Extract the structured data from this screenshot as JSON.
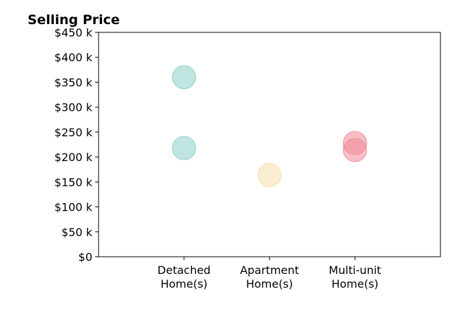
{
  "chart_data": {
    "type": "scatter",
    "title": "Selling Price",
    "xlabel": "",
    "ylabel": "",
    "categories": [
      {
        "line1": "Detached",
        "line2": "Home(s)"
      },
      {
        "line1": "Apartment",
        "line2": "Home(s)"
      },
      {
        "line1": "Multi-unit",
        "line2": "Home(s)"
      }
    ],
    "y_ticks": [
      {
        "value": 0,
        "label": "$0"
      },
      {
        "value": 50,
        "label": "$50 k"
      },
      {
        "value": 100,
        "label": "$100 k"
      },
      {
        "value": 150,
        "label": "$150 k"
      },
      {
        "value": 200,
        "label": "$200 k"
      },
      {
        "value": 250,
        "label": "$250 k"
      },
      {
        "value": 300,
        "label": "$300 k"
      },
      {
        "value": 350,
        "label": "$350 k"
      },
      {
        "value": 400,
        "label": "$400 k"
      },
      {
        "value": 450,
        "label": "$450 k"
      }
    ],
    "ylim": [
      0,
      450
    ],
    "x_range": [
      0,
      4
    ],
    "grid": false,
    "legend": "none",
    "points": [
      {
        "category": "Detached Home(s)",
        "x": 1,
        "y": 360,
        "color": "#8ccfc7"
      },
      {
        "category": "Detached Home(s)",
        "x": 1,
        "y": 218,
        "color": "#8ccfc7"
      },
      {
        "category": "Apartment Home(s)",
        "x": 2,
        "y": 164,
        "color": "#f5dfaa"
      },
      {
        "category": "Multi-unit Home(s)",
        "x": 3,
        "y": 228,
        "color": "#f08a96"
      },
      {
        "category": "Multi-unit Home(s)",
        "x": 3,
        "y": 214,
        "color": "#f08a96"
      }
    ]
  }
}
